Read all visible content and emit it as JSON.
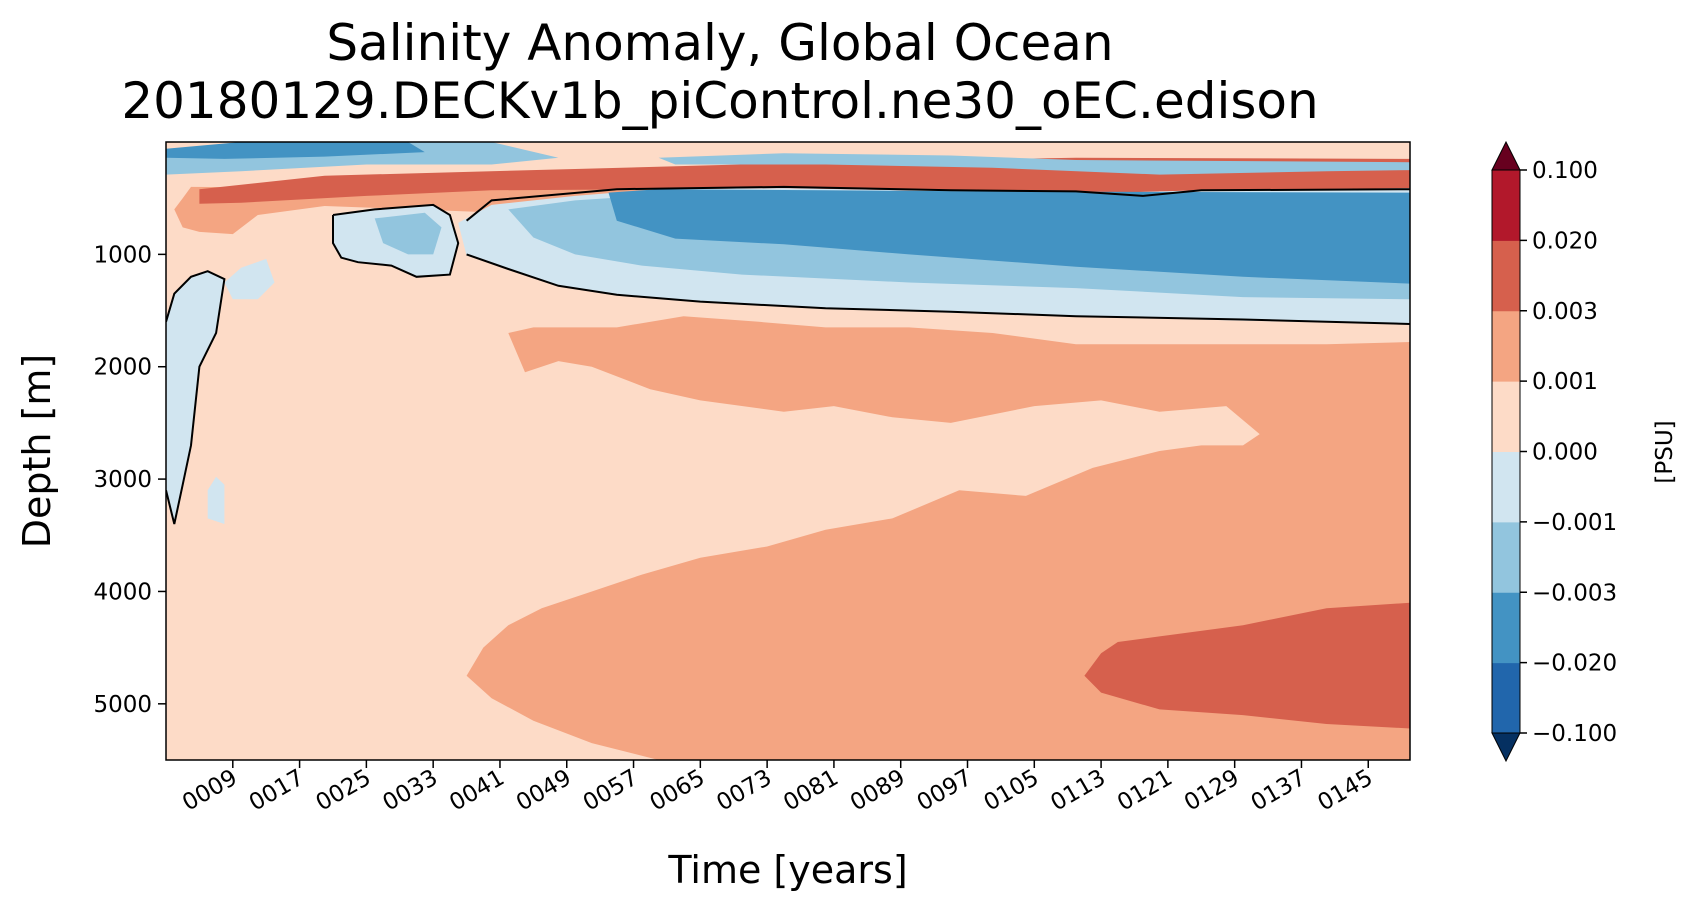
{
  "chart_data": {
    "type": "heatmap",
    "title_line1": "Salinity Anomaly, Global Ocean",
    "title_line2": "20180129.DECKv1b_piControl.ne30_oEC.edison",
    "xlabel": "Time [years]",
    "ylabel": "Depth [m]",
    "xlim": [
      1,
      150
    ],
    "ylim": [
      5500,
      0
    ],
    "x_ticks": [
      {
        "value": 9,
        "label": "0009"
      },
      {
        "value": 17,
        "label": "0017"
      },
      {
        "value": 25,
        "label": "0025"
      },
      {
        "value": 33,
        "label": "0033"
      },
      {
        "value": 41,
        "label": "0041"
      },
      {
        "value": 49,
        "label": "0049"
      },
      {
        "value": 57,
        "label": "0057"
      },
      {
        "value": 65,
        "label": "0065"
      },
      {
        "value": 73,
        "label": "0073"
      },
      {
        "value": 81,
        "label": "0081"
      },
      {
        "value": 89,
        "label": "0089"
      },
      {
        "value": 97,
        "label": "0097"
      },
      {
        "value": 105,
        "label": "0105"
      },
      {
        "value": 113,
        "label": "0113"
      },
      {
        "value": 121,
        "label": "0121"
      },
      {
        "value": 129,
        "label": "0129"
      },
      {
        "value": 137,
        "label": "0137"
      },
      {
        "value": 145,
        "label": "0145"
      }
    ],
    "y_ticks": [
      {
        "value": 1000,
        "label": "1000"
      },
      {
        "value": 2000,
        "label": "2000"
      },
      {
        "value": 3000,
        "label": "3000"
      },
      {
        "value": 4000,
        "label": "4000"
      },
      {
        "value": 5000,
        "label": "5000"
      }
    ],
    "colorbar": {
      "label": "[PSU]",
      "extend": "both",
      "levels": [
        "−0.100",
        "−0.020",
        "−0.003",
        "−0.001",
        "0.000",
        "0.001",
        "0.003",
        "0.020",
        "0.100"
      ],
      "colors": [
        "#2166ac",
        "#4393c3",
        "#92c5de",
        "#d1e5f0",
        "#fddbc7",
        "#f4a582",
        "#d6604d",
        "#b2182b"
      ],
      "under_color": "#053061",
      "over_color": "#67001f"
    },
    "regions": [
      {
        "name": "deep-positive",
        "level_index": 5,
        "polygon": [
          [
            37,
            4750
          ],
          [
            39,
            4500
          ],
          [
            42,
            4300
          ],
          [
            46,
            4150
          ],
          [
            52,
            4000
          ],
          [
            58,
            3850
          ],
          [
            65,
            3700
          ],
          [
            73,
            3600
          ],
          [
            80,
            3450
          ],
          [
            88,
            3350
          ],
          [
            96,
            3100
          ],
          [
            104,
            3150
          ],
          [
            112,
            2900
          ],
          [
            120,
            2750
          ],
          [
            125,
            2700
          ],
          [
            130,
            2700
          ],
          [
            132,
            2600
          ],
          [
            128,
            2350
          ],
          [
            120,
            2400
          ],
          [
            113,
            2300
          ],
          [
            105,
            2350
          ],
          [
            95,
            2500
          ],
          [
            88,
            2450
          ],
          [
            81,
            2350
          ],
          [
            75,
            2400
          ],
          [
            65,
            2300
          ],
          [
            59,
            2200
          ],
          [
            52,
            2000
          ],
          [
            48,
            1950
          ],
          [
            44,
            2050
          ],
          [
            42,
            1700
          ],
          [
            45,
            1650
          ],
          [
            55,
            1650
          ],
          [
            63,
            1550
          ],
          [
            72,
            1600
          ],
          [
            80,
            1650
          ],
          [
            90,
            1650
          ],
          [
            100,
            1700
          ],
          [
            110,
            1800
          ],
          [
            120,
            1800
          ],
          [
            130,
            1800
          ],
          [
            140,
            1800
          ],
          [
            150,
            1780
          ],
          [
            150,
            5500
          ],
          [
            60,
            5500
          ],
          [
            52,
            5350
          ],
          [
            45,
            5150
          ],
          [
            40,
            4950
          ]
        ]
      },
      {
        "name": "abyssal-strong",
        "level_index": 6,
        "polygon": [
          [
            111,
            4750
          ],
          [
            113,
            4550
          ],
          [
            115,
            4450
          ],
          [
            120,
            4400
          ],
          [
            130,
            4300
          ],
          [
            140,
            4150
          ],
          [
            150,
            4100
          ],
          [
            150,
            5220
          ],
          [
            140,
            5180
          ],
          [
            130,
            5100
          ],
          [
            120,
            5050
          ],
          [
            113,
            4900
          ]
        ]
      },
      {
        "name": "surface-warm",
        "level_index": 5,
        "polygon": [
          [
            2,
            600
          ],
          [
            3,
            500
          ],
          [
            4,
            400
          ],
          [
            150,
            450
          ],
          [
            150,
            550
          ],
          [
            70,
            580
          ],
          [
            45,
            650
          ],
          [
            38,
            620
          ],
          [
            20,
            570
          ],
          [
            12,
            650
          ],
          [
            9,
            820
          ],
          [
            5,
            800
          ],
          [
            3,
            760
          ]
        ]
      },
      {
        "name": "surface-red",
        "level_index": 6,
        "polygon": [
          [
            5,
            420
          ],
          [
            20,
            300
          ],
          [
            50,
            240
          ],
          [
            80,
            180
          ],
          [
            110,
            140
          ],
          [
            150,
            150
          ],
          [
            150,
            470
          ],
          [
            120,
            440
          ],
          [
            116,
            520
          ],
          [
            110,
            480
          ],
          [
            100,
            450
          ],
          [
            80,
            420
          ],
          [
            60,
            420
          ],
          [
            40,
            430
          ],
          [
            25,
            480
          ],
          [
            10,
            540
          ],
          [
            5,
            550
          ]
        ]
      },
      {
        "name": "mid-negative",
        "level_index": 3,
        "polygon": [
          [
            36,
            720
          ],
          [
            40,
            560
          ],
          [
            50,
            480
          ],
          [
            60,
            420
          ],
          [
            75,
            410
          ],
          [
            90,
            430
          ],
          [
            105,
            440
          ],
          [
            115,
            450
          ],
          [
            125,
            430
          ],
          [
            150,
            410
          ],
          [
            150,
            1620
          ],
          [
            130,
            1590
          ],
          [
            110,
            1550
          ],
          [
            95,
            1520
          ],
          [
            80,
            1480
          ],
          [
            65,
            1420
          ],
          [
            55,
            1360
          ],
          [
            48,
            1280
          ],
          [
            42,
            1130
          ],
          [
            37,
            1010
          ]
        ]
      },
      {
        "name": "mid-negative-2",
        "level_index": 2,
        "polygon": [
          [
            42,
            600
          ],
          [
            50,
            520
          ],
          [
            60,
            470
          ],
          [
            80,
            460
          ],
          [
            100,
            460
          ],
          [
            120,
            470
          ],
          [
            150,
            460
          ],
          [
            150,
            1400
          ],
          [
            130,
            1380
          ],
          [
            110,
            1300
          ],
          [
            90,
            1250
          ],
          [
            70,
            1180
          ],
          [
            58,
            1100
          ],
          [
            50,
            1000
          ],
          [
            45,
            850
          ]
        ]
      },
      {
        "name": "core-negative",
        "level_index": 1,
        "polygon": [
          [
            54,
            450
          ],
          [
            60,
            420
          ],
          [
            80,
            430
          ],
          [
            100,
            440
          ],
          [
            150,
            450
          ],
          [
            150,
            1260
          ],
          [
            130,
            1200
          ],
          [
            110,
            1110
          ],
          [
            90,
            1000
          ],
          [
            75,
            910
          ],
          [
            62,
            860
          ],
          [
            55,
            700
          ]
        ]
      },
      {
        "name": "patch-neg-a",
        "level_index": 3,
        "polygon": [
          [
            21,
            650
          ],
          [
            26,
            600
          ],
          [
            33,
            560
          ],
          [
            35,
            650
          ],
          [
            36,
            900
          ],
          [
            35,
            1180
          ],
          [
            31,
            1200
          ],
          [
            28,
            1100
          ],
          [
            24,
            1070
          ],
          [
            22,
            1030
          ],
          [
            21,
            900
          ]
        ]
      },
      {
        "name": "patch-neg-b",
        "level_index": 2,
        "polygon": [
          [
            26,
            680
          ],
          [
            32,
            630
          ],
          [
            34,
            760
          ],
          [
            33,
            1000
          ],
          [
            30,
            1000
          ],
          [
            27,
            900
          ]
        ]
      },
      {
        "name": "left-neg",
        "level_index": 3,
        "polygon": [
          [
            1,
            1600
          ],
          [
            2,
            1350
          ],
          [
            4,
            1200
          ],
          [
            6,
            1150
          ],
          [
            8,
            1220
          ],
          [
            7,
            1700
          ],
          [
            5,
            2000
          ],
          [
            4,
            2700
          ],
          [
            3,
            3050
          ],
          [
            2,
            3400
          ],
          [
            1,
            3100
          ]
        ]
      },
      {
        "name": "left-neg-b",
        "level_index": 3,
        "polygon": [
          [
            8,
            1250
          ],
          [
            10,
            1120
          ],
          [
            13,
            1040
          ],
          [
            14,
            1250
          ],
          [
            12,
            1400
          ],
          [
            9,
            1400
          ]
        ]
      },
      {
        "name": "left-neg-c",
        "level_index": 3,
        "polygon": [
          [
            6,
            3100
          ],
          [
            7,
            2980
          ],
          [
            8,
            3050
          ],
          [
            8,
            3400
          ],
          [
            6,
            3350
          ]
        ]
      },
      {
        "name": "top-blue",
        "level_index": 2,
        "polygon": [
          [
            1,
            100
          ],
          [
            20,
            0
          ],
          [
            40,
            0
          ],
          [
            48,
            140
          ],
          [
            40,
            200
          ],
          [
            25,
            200
          ],
          [
            10,
            260
          ],
          [
            1,
            290
          ]
        ]
      },
      {
        "name": "top-blue-2",
        "level_index": 1,
        "polygon": [
          [
            1,
            60
          ],
          [
            10,
            0
          ],
          [
            30,
            0
          ],
          [
            32,
            90
          ],
          [
            20,
            130
          ],
          [
            8,
            150
          ],
          [
            1,
            140
          ]
        ]
      },
      {
        "name": "top-blue-3",
        "level_index": 2,
        "polygon": [
          [
            60,
            140
          ],
          [
            75,
            100
          ],
          [
            95,
            120
          ],
          [
            110,
            160
          ],
          [
            150,
            180
          ],
          [
            150,
            250
          ],
          [
            140,
            260
          ],
          [
            120,
            290
          ],
          [
            100,
            230
          ],
          [
            80,
            200
          ],
          [
            62,
            200
          ]
        ]
      }
    ],
    "contours": [
      {
        "name": "contour-main",
        "points": [
          [
            37,
            700
          ],
          [
            40,
            520
          ],
          [
            55,
            420
          ],
          [
            75,
            400
          ],
          [
            95,
            430
          ],
          [
            110,
            440
          ],
          [
            118,
            480
          ],
          [
            125,
            430
          ],
          [
            150,
            420
          ]
        ]
      },
      {
        "name": "contour-deep",
        "points": [
          [
            37,
            1000
          ],
          [
            42,
            1130
          ],
          [
            48,
            1280
          ],
          [
            55,
            1360
          ],
          [
            65,
            1420
          ],
          [
            80,
            1480
          ],
          [
            95,
            1510
          ],
          [
            110,
            1550
          ],
          [
            130,
            1580
          ],
          [
            150,
            1620
          ]
        ]
      },
      {
        "name": "contour-left",
        "points": [
          [
            1,
            1600
          ],
          [
            2,
            1350
          ],
          [
            4,
            1200
          ],
          [
            6,
            1150
          ],
          [
            8,
            1220
          ],
          [
            7,
            1700
          ],
          [
            5,
            2000
          ],
          [
            4,
            2700
          ],
          [
            3,
            3050
          ],
          [
            2,
            3400
          ],
          [
            1,
            3100
          ]
        ]
      },
      {
        "name": "contour-patch",
        "points": [
          [
            21,
            650
          ],
          [
            26,
            600
          ],
          [
            33,
            560
          ],
          [
            35,
            650
          ],
          [
            36,
            900
          ],
          [
            35,
            1180
          ],
          [
            31,
            1200
          ],
          [
            28,
            1100
          ],
          [
            24,
            1070
          ],
          [
            22,
            1030
          ],
          [
            21,
            900
          ],
          [
            21,
            650
          ]
        ]
      }
    ]
  }
}
